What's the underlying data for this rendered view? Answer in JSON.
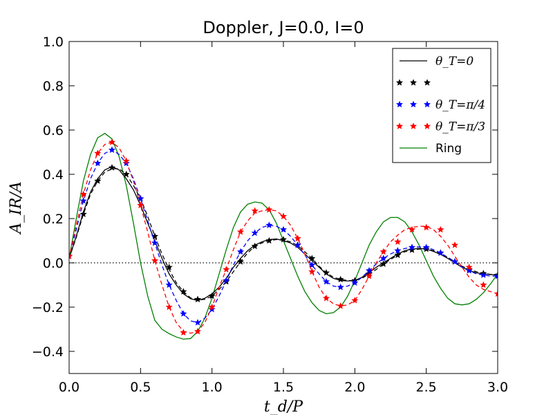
{
  "chart_data": {
    "type": "line",
    "title": "Doppler, J=0.0, I=0",
    "xlabel": "t_d/P",
    "ylabel": "A_IR/A",
    "xlim": [
      0.0,
      3.0
    ],
    "ylim": [
      -0.5,
      1.0
    ],
    "xticks": [
      0.0,
      0.5,
      1.0,
      1.5,
      2.0,
      2.5,
      3.0
    ],
    "xtick_labels": [
      "0.0",
      "0.5",
      "1.0",
      "1.5",
      "2.0",
      "2.5",
      "3.0"
    ],
    "yticks": [
      -0.4,
      -0.2,
      0.0,
      0.2,
      0.4,
      0.6,
      0.8,
      1.0
    ],
    "ytick_labels": [
      "−0.4",
      "−0.2",
      "0.0",
      "0.2",
      "0.4",
      "0.6",
      "0.8",
      "1.0"
    ],
    "grid": false,
    "legend_position": "top-right",
    "zero_line": {
      "y": 0.0,
      "style": "dotted",
      "color": "#000000"
    },
    "series": [
      {
        "name": "θ_T=0",
        "style": "solid-line",
        "color": "#000000",
        "x": [
          0.0,
          0.05,
          0.1,
          0.15,
          0.2,
          0.25,
          0.3,
          0.35,
          0.4,
          0.45,
          0.5,
          0.55,
          0.6,
          0.65,
          0.7,
          0.75,
          0.8,
          0.85,
          0.9,
          0.95,
          1.0,
          1.05,
          1.1,
          1.15,
          1.2,
          1.25,
          1.3,
          1.35,
          1.4,
          1.45,
          1.5,
          1.55,
          1.6,
          1.65,
          1.7,
          1.75,
          1.8,
          1.85,
          1.9,
          1.95,
          2.0,
          2.05,
          2.1,
          2.15,
          2.2,
          2.25,
          2.3,
          2.35,
          2.4,
          2.45,
          2.5,
          2.55,
          2.6,
          2.65,
          2.7,
          2.75,
          2.8,
          2.85,
          2.9,
          2.95,
          3.0
        ],
        "y": [
          0.02,
          0.12,
          0.23,
          0.32,
          0.38,
          0.42,
          0.435,
          0.42,
          0.38,
          0.33,
          0.26,
          0.18,
          0.1,
          0.02,
          -0.05,
          -0.1,
          -0.14,
          -0.162,
          -0.17,
          -0.16,
          -0.14,
          -0.11,
          -0.07,
          -0.02,
          0.02,
          0.055,
          0.08,
          0.095,
          0.105,
          0.108,
          0.1,
          0.09,
          0.07,
          0.04,
          0.01,
          -0.02,
          -0.05,
          -0.07,
          -0.08,
          -0.082,
          -0.08,
          -0.065,
          -0.045,
          -0.02,
          0.0,
          0.02,
          0.04,
          0.055,
          0.062,
          0.065,
          0.062,
          0.052,
          0.038,
          0.02,
          0.0,
          -0.02,
          -0.035,
          -0.045,
          -0.05,
          -0.053,
          -0.055
        ]
      },
      {
        "name": "",
        "style": "dashed-stars",
        "color": "#000000",
        "x": [
          0.0,
          0.05,
          0.1,
          0.15,
          0.2,
          0.25,
          0.3,
          0.35,
          0.4,
          0.45,
          0.5,
          0.55,
          0.6,
          0.65,
          0.7,
          0.75,
          0.8,
          0.85,
          0.9,
          0.95,
          1.0,
          1.05,
          1.1,
          1.15,
          1.2,
          1.25,
          1.3,
          1.35,
          1.4,
          1.45,
          1.5,
          1.55,
          1.6,
          1.65,
          1.7,
          1.75,
          1.8,
          1.85,
          1.9,
          1.95,
          2.0,
          2.05,
          2.1,
          2.15,
          2.2,
          2.25,
          2.3,
          2.35,
          2.4,
          2.45,
          2.5,
          2.55,
          2.6,
          2.65,
          2.7,
          2.75,
          2.8,
          2.85,
          2.9,
          2.95,
          3.0
        ],
        "y": [
          0.02,
          0.115,
          0.22,
          0.31,
          0.37,
          0.41,
          0.425,
          0.425,
          0.4,
          0.35,
          0.29,
          0.21,
          0.12,
          0.04,
          -0.03,
          -0.09,
          -0.13,
          -0.158,
          -0.168,
          -0.165,
          -0.15,
          -0.12,
          -0.085,
          -0.04,
          0.005,
          0.045,
          0.075,
          0.09,
          0.1,
          0.105,
          0.103,
          0.095,
          0.078,
          0.05,
          0.02,
          -0.015,
          -0.045,
          -0.065,
          -0.075,
          -0.08,
          -0.08,
          -0.07,
          -0.05,
          -0.03,
          -0.005,
          0.015,
          0.035,
          0.05,
          0.058,
          0.062,
          0.062,
          0.055,
          0.042,
          0.025,
          0.005,
          -0.015,
          -0.03,
          -0.04,
          -0.048,
          -0.052,
          -0.055
        ],
        "markers_x": [
          0.0,
          0.1,
          0.2,
          0.3,
          0.4,
          0.5,
          0.6,
          0.7,
          0.8,
          0.9,
          1.0,
          1.1,
          1.2,
          1.3,
          1.4,
          1.5,
          1.6,
          1.7,
          1.8,
          1.9,
          2.0,
          2.1,
          2.2,
          2.3,
          2.4,
          2.5,
          2.6,
          2.7,
          2.8,
          2.9,
          3.0
        ],
        "markers_y": [
          0.03,
          0.22,
          0.37,
          0.43,
          0.4,
          0.29,
          0.12,
          -0.02,
          -0.13,
          -0.165,
          -0.15,
          -0.085,
          0.005,
          0.075,
          0.1,
          0.105,
          0.08,
          0.02,
          -0.045,
          -0.075,
          -0.08,
          -0.05,
          -0.005,
          0.035,
          0.058,
          0.062,
          0.045,
          0.005,
          -0.03,
          -0.048,
          -0.055
        ]
      },
      {
        "name": "θ_T=π/4",
        "style": "dashed-stars",
        "color": "#0000ff",
        "x": [
          0.0,
          0.05,
          0.1,
          0.15,
          0.2,
          0.25,
          0.3,
          0.35,
          0.4,
          0.45,
          0.5,
          0.55,
          0.6,
          0.65,
          0.7,
          0.75,
          0.8,
          0.85,
          0.9,
          0.95,
          1.0,
          1.05,
          1.1,
          1.15,
          1.2,
          1.25,
          1.3,
          1.35,
          1.4,
          1.45,
          1.5,
          1.55,
          1.6,
          1.65,
          1.7,
          1.75,
          1.8,
          1.85,
          1.9,
          1.95,
          2.0,
          2.05,
          2.1,
          2.15,
          2.2,
          2.25,
          2.3,
          2.35,
          2.4,
          2.45,
          2.5,
          2.55,
          2.6,
          2.65,
          2.7,
          2.75,
          2.8,
          2.85,
          2.9,
          2.95,
          3.0
        ],
        "y": [
          0.02,
          0.15,
          0.28,
          0.38,
          0.45,
          0.495,
          0.51,
          0.49,
          0.45,
          0.38,
          0.29,
          0.19,
          0.09,
          -0.01,
          -0.1,
          -0.17,
          -0.23,
          -0.262,
          -0.27,
          -0.25,
          -0.21,
          -0.15,
          -0.08,
          -0.01,
          0.05,
          0.1,
          0.135,
          0.16,
          0.17,
          0.165,
          0.15,
          0.12,
          0.08,
          0.035,
          -0.01,
          -0.05,
          -0.085,
          -0.105,
          -0.11,
          -0.105,
          -0.09,
          -0.065,
          -0.035,
          -0.005,
          0.02,
          0.04,
          0.055,
          0.065,
          0.07,
          0.072,
          0.07,
          0.06,
          0.045,
          0.025,
          0.005,
          -0.02,
          -0.035,
          -0.05,
          -0.055,
          -0.06,
          -0.06
        ],
        "markers_x": [
          0.0,
          0.1,
          0.2,
          0.3,
          0.4,
          0.5,
          0.6,
          0.7,
          0.8,
          0.9,
          1.0,
          1.1,
          1.2,
          1.3,
          1.4,
          1.5,
          1.6,
          1.7,
          1.8,
          1.9,
          2.0,
          2.1,
          2.2,
          2.3,
          2.4,
          2.5,
          2.6,
          2.7,
          2.8,
          2.9,
          3.0
        ],
        "markers_y": [
          0.03,
          0.28,
          0.45,
          0.51,
          0.45,
          0.29,
          0.09,
          -0.1,
          -0.23,
          -0.27,
          -0.21,
          -0.08,
          0.05,
          0.135,
          0.17,
          0.15,
          0.08,
          -0.01,
          -0.085,
          -0.11,
          -0.09,
          -0.035,
          0.02,
          0.055,
          0.07,
          0.07,
          0.045,
          0.005,
          -0.035,
          -0.055,
          -0.06
        ]
      },
      {
        "name": "θ_T=π/3",
        "style": "dashed-stars",
        "color": "#ff0000",
        "x": [
          0.0,
          0.05,
          0.1,
          0.15,
          0.2,
          0.25,
          0.3,
          0.35,
          0.4,
          0.45,
          0.5,
          0.55,
          0.6,
          0.65,
          0.7,
          0.75,
          0.8,
          0.85,
          0.9,
          0.95,
          1.0,
          1.05,
          1.1,
          1.15,
          1.2,
          1.25,
          1.3,
          1.35,
          1.4,
          1.45,
          1.5,
          1.55,
          1.6,
          1.65,
          1.7,
          1.75,
          1.8,
          1.85,
          1.9,
          1.95,
          2.0,
          2.05,
          2.1,
          2.15,
          2.2,
          2.25,
          2.3,
          2.35,
          2.4,
          2.45,
          2.5,
          2.55,
          2.6,
          2.65,
          2.7,
          2.75,
          2.8,
          2.85,
          2.9,
          2.95,
          3.0
        ],
        "y": [
          0.02,
          0.17,
          0.31,
          0.42,
          0.495,
          0.535,
          0.545,
          0.52,
          0.46,
          0.37,
          0.26,
          0.14,
          0.01,
          -0.1,
          -0.2,
          -0.27,
          -0.31,
          -0.318,
          -0.31,
          -0.27,
          -0.2,
          -0.11,
          -0.03,
          0.06,
          0.14,
          0.19,
          0.225,
          0.235,
          0.24,
          0.235,
          0.21,
          0.17,
          0.11,
          0.04,
          -0.04,
          -0.11,
          -0.16,
          -0.185,
          -0.195,
          -0.19,
          -0.17,
          -0.12,
          -0.06,
          0.0,
          0.05,
          0.095,
          0.125,
          0.15,
          0.16,
          0.165,
          0.165,
          0.15,
          0.12,
          0.08,
          0.03,
          -0.02,
          -0.065,
          -0.1,
          -0.12,
          -0.13,
          -0.14
        ],
        "markers_x": [
          0.0,
          0.1,
          0.2,
          0.3,
          0.4,
          0.5,
          0.6,
          0.7,
          0.8,
          0.9,
          1.0,
          1.1,
          1.2,
          1.3,
          1.4,
          1.5,
          1.6,
          1.7,
          1.8,
          1.9,
          2.0,
          2.1,
          2.2,
          2.3,
          2.4,
          2.5,
          2.6,
          2.7,
          2.8,
          2.9,
          3.0
        ],
        "markers_y": [
          0.03,
          0.31,
          0.495,
          0.545,
          0.46,
          0.26,
          0.01,
          -0.2,
          -0.315,
          -0.31,
          -0.2,
          -0.03,
          0.14,
          0.235,
          0.24,
          0.21,
          0.11,
          -0.04,
          -0.16,
          -0.195,
          -0.17,
          -0.06,
          0.05,
          0.095,
          0.15,
          0.16,
          0.15,
          0.08,
          -0.02,
          -0.1,
          -0.14
        ]
      },
      {
        "name": "Ring",
        "style": "solid-line",
        "color": "#007f00",
        "x": [
          0.0,
          0.05,
          0.1,
          0.15,
          0.2,
          0.25,
          0.3,
          0.35,
          0.4,
          0.45,
          0.5,
          0.55,
          0.6,
          0.65,
          0.7,
          0.75,
          0.8,
          0.85,
          0.9,
          0.95,
          1.0,
          1.05,
          1.1,
          1.15,
          1.2,
          1.25,
          1.3,
          1.35,
          1.4,
          1.45,
          1.5,
          1.55,
          1.6,
          1.65,
          1.7,
          1.75,
          1.8,
          1.85,
          1.9,
          1.95,
          2.0,
          2.05,
          2.1,
          2.15,
          2.2,
          2.25,
          2.3,
          2.35,
          2.4,
          2.45,
          2.5,
          2.55,
          2.6,
          2.65,
          2.7,
          2.75,
          2.8,
          2.85,
          2.9,
          2.95,
          3.0
        ],
        "y": [
          0.02,
          0.2,
          0.37,
          0.49,
          0.565,
          0.585,
          0.56,
          0.48,
          0.35,
          0.18,
          0.0,
          -0.15,
          -0.26,
          -0.3,
          -0.32,
          -0.335,
          -0.345,
          -0.342,
          -0.31,
          -0.25,
          -0.16,
          -0.05,
          0.06,
          0.16,
          0.23,
          0.265,
          0.275,
          0.27,
          0.24,
          0.18,
          0.1,
          0.02,
          -0.06,
          -0.13,
          -0.18,
          -0.215,
          -0.23,
          -0.225,
          -0.2,
          -0.15,
          -0.08,
          0.0,
          0.08,
          0.14,
          0.185,
          0.205,
          0.205,
          0.185,
          0.14,
          0.08,
          0.01,
          -0.06,
          -0.115,
          -0.16,
          -0.185,
          -0.19,
          -0.185,
          -0.165,
          -0.135,
          -0.095,
          -0.05
        ]
      }
    ]
  }
}
